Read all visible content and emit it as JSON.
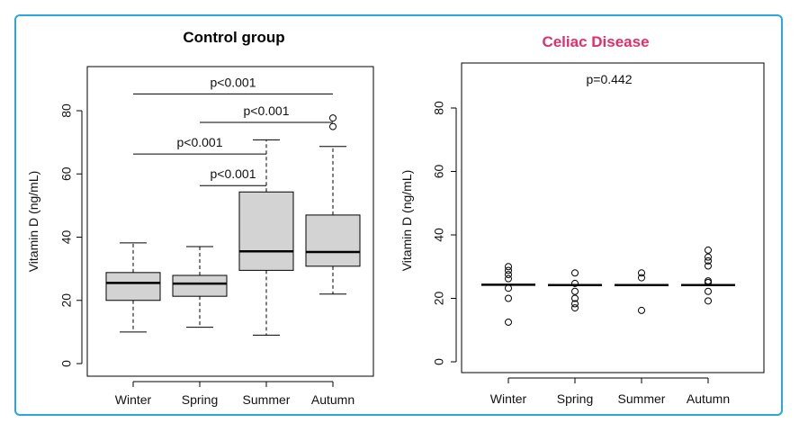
{
  "chart_data": [
    {
      "type": "boxplot",
      "title": "Control group",
      "title_color": "#000000",
      "ylabel": "Vitamin D (ng/mL)",
      "xlabel": "",
      "ylim": [
        0,
        90
      ],
      "yticks": [
        0,
        20,
        40,
        60,
        80
      ],
      "categories": [
        "Winter",
        "Spring",
        "Summer",
        "Autumn"
      ],
      "box_color": "#d3d3d3",
      "boxes": [
        {
          "category": "Winter",
          "min": 10,
          "q1": 20,
          "median": 25.5,
          "q3": 28.8,
          "max": 38.2,
          "outliers": []
        },
        {
          "category": "Spring",
          "min": 11.5,
          "q1": 21.3,
          "median": 25.3,
          "q3": 27.9,
          "max": 37,
          "outliers": []
        },
        {
          "category": "Summer",
          "min": 9,
          "q1": 29.5,
          "median": 35.5,
          "q3": 54.3,
          "max": 70.8,
          "outliers": []
        },
        {
          "category": "Autumn",
          "min": 22,
          "q1": 30.8,
          "median": 35.3,
          "q3": 47,
          "max": 68.7,
          "outliers": [
            75,
            77.7
          ]
        }
      ],
      "comparisons": [
        {
          "from": "Winter",
          "to": "Autumn",
          "y": 85.3,
          "label": "p<0.001"
        },
        {
          "from": "Spring",
          "to": "Autumn",
          "y": 76.3,
          "label": "p<0.001"
        },
        {
          "from": "Winter",
          "to": "Summer",
          "y": 66.3,
          "label": "p<0.001"
        },
        {
          "from": "Spring",
          "to": "Summer",
          "y": 56.3,
          "label": "p<0.001"
        }
      ]
    },
    {
      "type": "dotplot",
      "title": "Celiac Disease",
      "title_color": "#e0306a",
      "ylabel": "Vitamin D (ng/mL)",
      "xlabel": "",
      "ylim": [
        0,
        90
      ],
      "yticks": [
        0,
        20,
        40,
        60,
        80
      ],
      "categories": [
        "Winter",
        "Spring",
        "Summer",
        "Autumn"
      ],
      "annotation": "p=0.442",
      "series": [
        {
          "category": "Winter",
          "median": 24.3,
          "points": [
            30,
            28.8,
            27.5,
            26.2,
            23.2,
            20,
            12.5
          ]
        },
        {
          "category": "Spring",
          "median": 24.2,
          "points": [
            28,
            24.7,
            22.2,
            20,
            18.3,
            17
          ]
        },
        {
          "category": "Summer",
          "median": 24.2,
          "points": [
            28,
            26.5,
            16.2
          ]
        },
        {
          "category": "Autumn",
          "median": 24.2,
          "points": [
            35.2,
            33,
            31.8,
            30.2,
            25.5,
            25,
            22.2,
            19.2
          ]
        }
      ]
    }
  ]
}
